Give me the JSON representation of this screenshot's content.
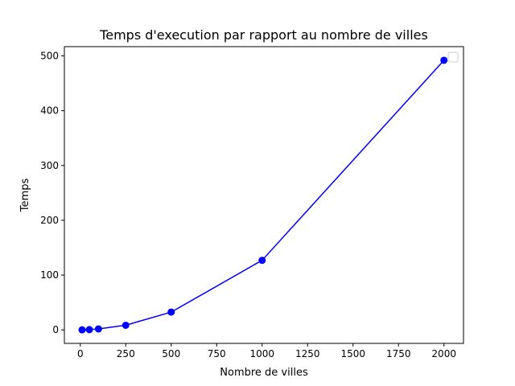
{
  "chart_data": {
    "type": "line",
    "title": "Temps d'execution par rapport au nombre de villes",
    "xlabel": "Nombre de villes",
    "ylabel": "Temps",
    "xlim": [
      -87.5,
      2107.5
    ],
    "ylim": [
      -24.6,
      516.9
    ],
    "xticks": [
      0,
      250,
      500,
      750,
      1000,
      1250,
      1500,
      1750,
      2000
    ],
    "yticks": [
      0,
      100,
      200,
      300,
      400,
      500
    ],
    "grid": false,
    "legend": {
      "placement": "top-right",
      "entries": []
    },
    "series": [
      {
        "color": "#0000ff",
        "marker": "circle",
        "x": [
          10,
          50,
          100,
          250,
          500,
          1000,
          2000
        ],
        "y": [
          0.1,
          0.5,
          1.8,
          8.5,
          32.5,
          127,
          492
        ]
      }
    ]
  }
}
